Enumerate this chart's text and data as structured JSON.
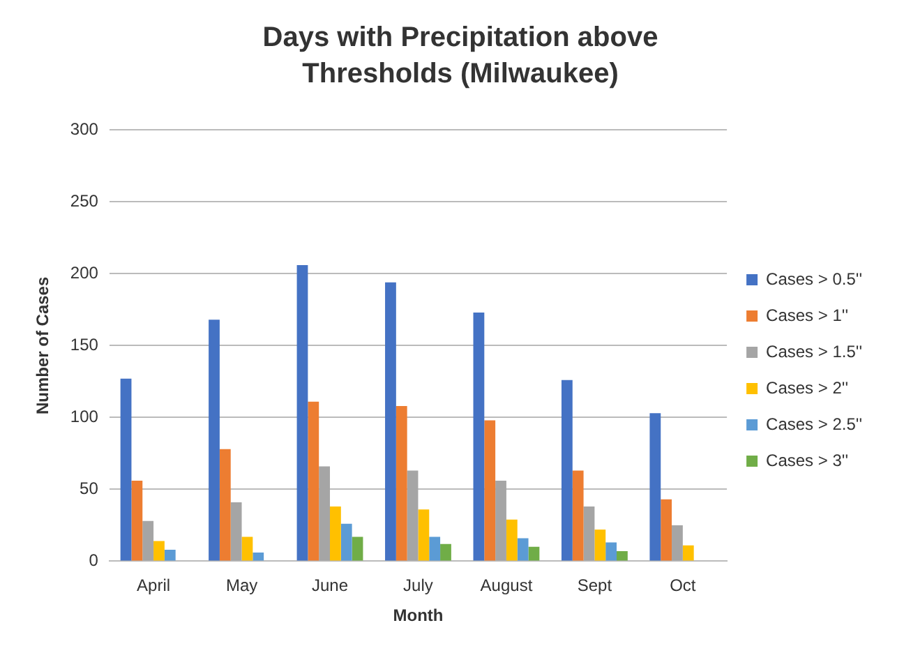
{
  "chart_data": {
    "type": "bar",
    "title": "Days with Precipitation above Thresholds (Milwaukee)",
    "xlabel": "Month",
    "ylabel": "Number of Cases",
    "categories": [
      "April",
      "May",
      "June",
      "July",
      "August",
      "Sept",
      "Oct"
    ],
    "series": [
      {
        "name": "Cases > 0.5''",
        "color": "#4472c4",
        "values": [
          127,
          168,
          206,
          194,
          173,
          126,
          103
        ]
      },
      {
        "name": "Cases > 1''",
        "color": "#ed7d31",
        "values": [
          56,
          78,
          111,
          108,
          98,
          63,
          43
        ]
      },
      {
        "name": "Cases > 1.5''",
        "color": "#a5a5a5",
        "values": [
          28,
          41,
          66,
          63,
          56,
          38,
          25
        ]
      },
      {
        "name": "Cases > 2''",
        "color": "#ffc000",
        "values": [
          14,
          17,
          38,
          36,
          29,
          22,
          11
        ]
      },
      {
        "name": "Cases > 2.5''",
        "color": "#5b9bd5",
        "values": [
          8,
          6,
          26,
          17,
          16,
          13,
          0
        ]
      },
      {
        "name": "Cases > 3''",
        "color": "#70ad47",
        "values": [
          0,
          0,
          17,
          12,
          10,
          7,
          0
        ]
      }
    ],
    "ylim": [
      0,
      300
    ],
    "yticks": [
      0,
      50,
      100,
      150,
      200,
      250,
      300
    ],
    "grid": "y",
    "legend": "right"
  }
}
